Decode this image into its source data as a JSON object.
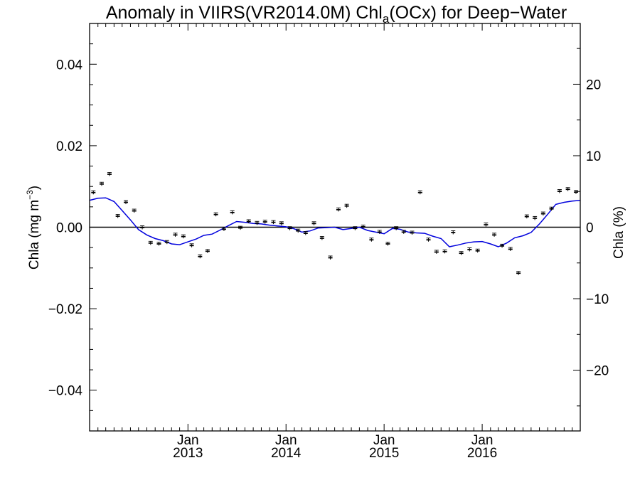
{
  "chart_data": {
    "type": "scatter",
    "title": {
      "prefix": "Anomaly in VIIRS(VR2014.0M) Chl",
      "subscript": "a",
      "suffix": "(OCx) for Deep−Water"
    },
    "ylabel_left": {
      "main": "Chla (mg m",
      "sup": "−3",
      "close": ")"
    },
    "ylabel_right": "Chla (%)",
    "x_range": [
      "2012-01-01",
      "2016-12-31"
    ],
    "ylim_left": [
      -0.05,
      0.05
    ],
    "ylim_right": [
      -28.5,
      28.5
    ],
    "left_ticks": [
      {
        "value": 0.04,
        "label": "0.04"
      },
      {
        "value": 0.02,
        "label": "0.02"
      },
      {
        "value": 0.0,
        "label": "0.00"
      },
      {
        "value": -0.02,
        "label": "−0.02"
      },
      {
        "value": -0.04,
        "label": "−0.04"
      }
    ],
    "right_ticks": [
      {
        "value": 20,
        "label": "20"
      },
      {
        "value": 10,
        "label": "10"
      },
      {
        "value": 0,
        "label": "0"
      },
      {
        "value": -10,
        "label": "−10"
      },
      {
        "value": -20,
        "label": "−20"
      }
    ],
    "x_ticks": [
      {
        "date": "2013-01-01",
        "month": "Jan",
        "year": "2013"
      },
      {
        "date": "2014-01-01",
        "month": "Jan",
        "year": "2014"
      },
      {
        "date": "2015-01-01",
        "month": "Jan",
        "year": "2015"
      },
      {
        "date": "2016-01-01",
        "month": "Jan",
        "year": "2016"
      }
    ],
    "zero_line": 0.0,
    "series": [
      {
        "kind": "monthly-points-with-errorbars",
        "color": "#000000",
        "points": [
          {
            "x": "2012-01-15",
            "y": 0.0085
          },
          {
            "x": "2012-02-15",
            "y": 0.0106
          },
          {
            "x": "2012-03-15",
            "y": 0.013
          },
          {
            "x": "2012-04-15",
            "y": 0.0027
          },
          {
            "x": "2012-05-15",
            "y": 0.0061
          },
          {
            "x": "2012-06-15",
            "y": 0.004
          },
          {
            "x": "2012-07-15",
            "y": -0.0001
          },
          {
            "x": "2012-08-15",
            "y": -0.0039
          },
          {
            "x": "2012-09-15",
            "y": -0.0041
          },
          {
            "x": "2012-10-15",
            "y": -0.0037
          },
          {
            "x": "2012-11-15",
            "y": -0.0019
          },
          {
            "x": "2012-12-15",
            "y": -0.0023
          },
          {
            "x": "2013-01-15",
            "y": -0.0045
          },
          {
            "x": "2013-02-15",
            "y": -0.0072
          },
          {
            "x": "2013-03-15",
            "y": -0.0059
          },
          {
            "x": "2013-04-15",
            "y": 0.0031
          },
          {
            "x": "2013-05-15",
            "y": -0.0005
          },
          {
            "x": "2013-06-15",
            "y": 0.0036
          },
          {
            "x": "2013-07-15",
            "y": -0.0002
          },
          {
            "x": "2013-08-15",
            "y": 0.0014
          },
          {
            "x": "2013-09-15",
            "y": 0.001
          },
          {
            "x": "2013-10-15",
            "y": 0.0013
          },
          {
            "x": "2013-11-15",
            "y": 0.0012
          },
          {
            "x": "2013-12-15",
            "y": 0.0009
          },
          {
            "x": "2014-01-15",
            "y": -0.0003
          },
          {
            "x": "2014-02-15",
            "y": -0.0009
          },
          {
            "x": "2014-03-15",
            "y": -0.0015
          },
          {
            "x": "2014-04-15",
            "y": 0.0009
          },
          {
            "x": "2014-05-15",
            "y": -0.0027
          },
          {
            "x": "2014-06-15",
            "y": -0.0075
          },
          {
            "x": "2014-07-15",
            "y": 0.0043
          },
          {
            "x": "2014-08-15",
            "y": 0.0052
          },
          {
            "x": "2014-09-15",
            "y": -0.0003
          },
          {
            "x": "2014-10-15",
            "y": 0.0001
          },
          {
            "x": "2014-11-15",
            "y": -0.0031
          },
          {
            "x": "2014-12-15",
            "y": -0.0012
          },
          {
            "x": "2015-01-15",
            "y": -0.0041
          },
          {
            "x": "2015-02-15",
            "y": -0.0003
          },
          {
            "x": "2015-03-15",
            "y": -0.0012
          },
          {
            "x": "2015-04-15",
            "y": -0.0014
          },
          {
            "x": "2015-05-15",
            "y": 0.0085
          },
          {
            "x": "2015-06-15",
            "y": -0.0031
          },
          {
            "x": "2015-07-15",
            "y": -0.0061
          },
          {
            "x": "2015-08-15",
            "y": -0.006
          },
          {
            "x": "2015-09-15",
            "y": -0.0013
          },
          {
            "x": "2015-10-15",
            "y": -0.0064
          },
          {
            "x": "2015-11-15",
            "y": -0.0055
          },
          {
            "x": "2015-12-15",
            "y": -0.0058
          },
          {
            "x": "2016-01-15",
            "y": 0.0006
          },
          {
            "x": "2016-02-15",
            "y": -0.0019
          },
          {
            "x": "2016-03-15",
            "y": -0.0046
          },
          {
            "x": "2016-04-15",
            "y": -0.0054
          },
          {
            "x": "2016-05-15",
            "y": -0.0113
          },
          {
            "x": "2016-06-15",
            "y": 0.0026
          },
          {
            "x": "2016-07-15",
            "y": 0.0022
          },
          {
            "x": "2016-08-15",
            "y": 0.0033
          },
          {
            "x": "2016-09-15",
            "y": 0.0045
          },
          {
            "x": "2016-10-15",
            "y": 0.0088
          },
          {
            "x": "2016-11-15",
            "y": 0.0093
          },
          {
            "x": "2016-12-15",
            "y": 0.0086
          }
        ]
      },
      {
        "kind": "smoothed-line",
        "color": "#0000dd",
        "points": [
          {
            "x": "2012-01-01",
            "y": 0.0066
          },
          {
            "x": "2012-02-01",
            "y": 0.0071
          },
          {
            "x": "2012-03-01",
            "y": 0.0072
          },
          {
            "x": "2012-04-01",
            "y": 0.0063
          },
          {
            "x": "2012-05-01",
            "y": 0.0041
          },
          {
            "x": "2012-06-01",
            "y": 0.0018
          },
          {
            "x": "2012-07-01",
            "y": -0.0006
          },
          {
            "x": "2012-08-01",
            "y": -0.0019
          },
          {
            "x": "2012-09-01",
            "y": -0.0028
          },
          {
            "x": "2012-10-01",
            "y": -0.0033
          },
          {
            "x": "2012-11-01",
            "y": -0.0041
          },
          {
            "x": "2012-12-01",
            "y": -0.0043
          },
          {
            "x": "2013-01-01",
            "y": -0.0036
          },
          {
            "x": "2013-02-01",
            "y": -0.0029
          },
          {
            "x": "2013-03-01",
            "y": -0.002
          },
          {
            "x": "2013-04-01",
            "y": -0.0017
          },
          {
            "x": "2013-05-01",
            "y": -0.0007
          },
          {
            "x": "2013-06-01",
            "y": 0.0004
          },
          {
            "x": "2013-07-01",
            "y": 0.0014
          },
          {
            "x": "2013-08-01",
            "y": 0.0012
          },
          {
            "x": "2013-09-01",
            "y": 0.0009
          },
          {
            "x": "2013-10-01",
            "y": 0.0008
          },
          {
            "x": "2013-11-01",
            "y": 0.0005
          },
          {
            "x": "2013-12-01",
            "y": 0.0003
          },
          {
            "x": "2014-01-01",
            "y": 0.0001
          },
          {
            "x": "2014-02-01",
            "y": -0.0004
          },
          {
            "x": "2014-03-01",
            "y": -0.0012
          },
          {
            "x": "2014-04-01",
            "y": -0.0009
          },
          {
            "x": "2014-05-01",
            "y": -0.0002
          },
          {
            "x": "2014-06-01",
            "y": -0.0001
          },
          {
            "x": "2014-07-01",
            "y": 0.0
          },
          {
            "x": "2014-08-01",
            "y": -0.0006
          },
          {
            "x": "2014-09-01",
            "y": -0.0003
          },
          {
            "x": "2014-10-01",
            "y": 0.0
          },
          {
            "x": "2014-11-01",
            "y": -0.0008
          },
          {
            "x": "2014-12-01",
            "y": -0.0012
          },
          {
            "x": "2015-01-01",
            "y": -0.0016
          },
          {
            "x": "2015-02-01",
            "y": -0.0003
          },
          {
            "x": "2015-03-01",
            "y": -0.0005
          },
          {
            "x": "2015-04-01",
            "y": -0.0012
          },
          {
            "x": "2015-05-01",
            "y": -0.0014
          },
          {
            "x": "2015-06-01",
            "y": -0.0015
          },
          {
            "x": "2015-07-01",
            "y": -0.0022
          },
          {
            "x": "2015-08-01",
            "y": -0.0028
          },
          {
            "x": "2015-09-01",
            "y": -0.0048
          },
          {
            "x": "2015-10-01",
            "y": -0.0044
          },
          {
            "x": "2015-11-01",
            "y": -0.0039
          },
          {
            "x": "2015-12-01",
            "y": -0.0036
          },
          {
            "x": "2016-01-01",
            "y": -0.0035
          },
          {
            "x": "2016-02-01",
            "y": -0.0041
          },
          {
            "x": "2016-03-01",
            "y": -0.0048
          },
          {
            "x": "2016-04-01",
            "y": -0.0039
          },
          {
            "x": "2016-05-01",
            "y": -0.0026
          },
          {
            "x": "2016-06-01",
            "y": -0.0021
          },
          {
            "x": "2016-07-01",
            "y": -0.0013
          },
          {
            "x": "2016-08-01",
            "y": 0.0008
          },
          {
            "x": "2016-09-01",
            "y": 0.0032
          },
          {
            "x": "2016-10-01",
            "y": 0.0056
          },
          {
            "x": "2016-11-01",
            "y": 0.0061
          },
          {
            "x": "2016-12-01",
            "y": 0.0064
          },
          {
            "x": "2016-12-31",
            "y": 0.0066
          }
        ]
      }
    ]
  }
}
